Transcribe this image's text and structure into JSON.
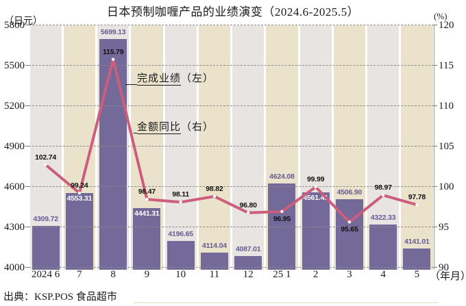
{
  "header": {
    "title": "日本预制咖喱产品的业绩演变（2024.6-2025.5）",
    "left_axis_unit": "（日元）",
    "right_axis_unit": "(%)",
    "x_axis_unit": "（年月）"
  },
  "annotations": {
    "bar_series": {
      "text": "完成业绩（左）",
      "underline_chars": 4
    },
    "line_series": {
      "text": "金额同比（右）",
      "underline_chars": 4
    }
  },
  "source": "出典：KSP.POS 食品超市",
  "colors": {
    "bar": "#746a9a",
    "bar_label_above": "#665b95",
    "bar_label_inside": "#ffffff",
    "line": "#cd5d7d",
    "line_label": "#111111",
    "marker": "#ffffff",
    "band_grey": "#e7e4e1",
    "band_beige": "#eae2cb",
    "gridline": "#8a8a8a"
  },
  "chart_data": {
    "type": "bar",
    "subtype": "bar+line combo, dual axis",
    "title": "日本预制咖喱产品的业绩演变（2024.6-2025.5）",
    "categories": [
      "2024 6",
      "7",
      "8",
      "9",
      "10",
      "11",
      "12",
      "25 1",
      "2",
      "3",
      "4",
      "5"
    ],
    "series": [
      {
        "name": "完成业绩（左）",
        "kind": "bar",
        "axis": "left",
        "values": [
          4309.72,
          4553.31,
          5699.13,
          4441.31,
          4196.65,
          4114.04,
          4087.01,
          4624.08,
          4561.41,
          4506.9,
          4322.33,
          4141.01
        ],
        "label_placement": [
          "above",
          "inside",
          "above",
          "inside",
          "above",
          "above",
          "above",
          "above",
          "inside",
          "above",
          "above",
          "above"
        ]
      },
      {
        "name": "金额同比（右）",
        "kind": "line",
        "axis": "right",
        "values": [
          102.74,
          99.24,
          115.79,
          98.47,
          98.11,
          98.82,
          96.8,
          96.95,
          99.99,
          95.65,
          98.97,
          97.78
        ],
        "label_placement": [
          "above",
          "above",
          "above",
          "above",
          "above",
          "above",
          "above",
          "below",
          "above",
          "below",
          "above",
          "above"
        ]
      }
    ],
    "left_axis": {
      "label": "（日元）",
      "min": 4000,
      "max": 5800,
      "ticks": [
        5800,
        5500,
        5200,
        4900,
        4600,
        4300,
        4000
      ]
    },
    "right_axis": {
      "label": "(%)",
      "min": 90,
      "max": 120,
      "ticks": [
        120,
        115,
        110,
        105,
        100,
        95,
        90
      ]
    },
    "x_label_suffix": "（年月）",
    "grid": true,
    "plot_background": "alternating vertical bands grey/beige",
    "legend_position": "text annotations inside plot"
  }
}
